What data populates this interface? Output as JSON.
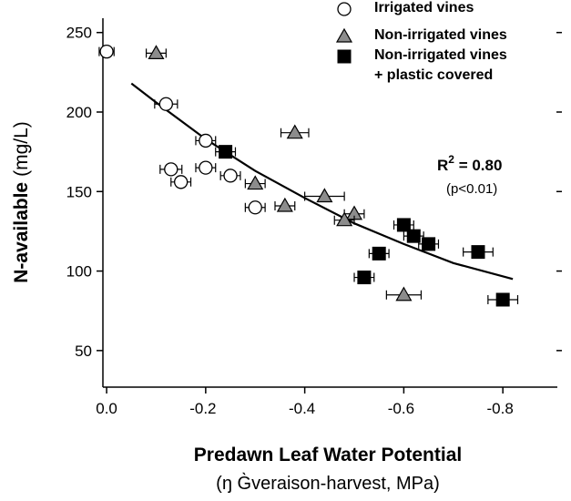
{
  "chart_data": {
    "type": "scatter",
    "x_label": "Predawn Leaf Water Potential",
    "x_label_sub": "(ŋ G̀veraison-harvest, MPa)",
    "y_label": "N-available",
    "y_label_unit": "(mg/L)",
    "xlim": [
      0.0075,
      -0.91
    ],
    "ylim": [
      27,
      259
    ],
    "xticks": [
      {
        "value": 0,
        "label": "0.0"
      },
      -0.2,
      -0.4,
      -0.6,
      -0.8
    ],
    "yticks": [
      50,
      100,
      150,
      200,
      250
    ],
    "series": [
      {
        "name": "Irrigated vines",
        "marker": "circle",
        "color": "#ffffff",
        "x": [
          0.0,
          -0.12,
          -0.2,
          -0.13,
          -0.15,
          -0.2,
          -0.25,
          -0.3
        ],
        "values": [
          238,
          205,
          182,
          164,
          156,
          165,
          160,
          140
        ],
        "xerr": [
          0.015,
          0.023,
          0.02,
          0.022,
          0.02,
          0.02,
          0.02,
          0.02
        ]
      },
      {
        "name": "Non-irrigated vines",
        "marker": "triangle",
        "color": "#8c8c8c",
        "x": [
          -0.1,
          -0.38,
          -0.3,
          -0.36,
          -0.44,
          -0.5,
          -0.48,
          -0.6
        ],
        "values": [
          237,
          187,
          155,
          141,
          147,
          136,
          132,
          85
        ],
        "xerr": [
          0.02,
          0.028,
          0.02,
          0.02,
          0.04,
          0.02,
          0.02,
          0.035
        ]
      },
      {
        "name": "Non-irrigated vines\n+ plastic covered",
        "marker": "square",
        "color": "#000000",
        "x": [
          -0.24,
          -0.6,
          -0.62,
          -0.65,
          -0.55,
          -0.52,
          -0.75,
          -0.8
        ],
        "values": [
          175,
          129,
          122,
          117,
          111,
          96,
          112,
          82
        ],
        "xerr": [
          0.02,
          0.02,
          0.02,
          0.02,
          0.02,
          0.02,
          0.03,
          0.03
        ]
      }
    ],
    "fit_line": {
      "color": "#000000",
      "x": [
        -0.05,
        -0.1,
        -0.2,
        -0.3,
        -0.4,
        -0.5,
        -0.6,
        -0.7,
        -0.82
      ],
      "y": [
        218,
        206,
        183,
        163,
        146,
        130,
        117,
        105,
        95
      ]
    },
    "annotation_r": "R",
    "annotation_sup": "2",
    "annotation_value": " = 0.80",
    "annotation_p": "(p<0.01)"
  }
}
